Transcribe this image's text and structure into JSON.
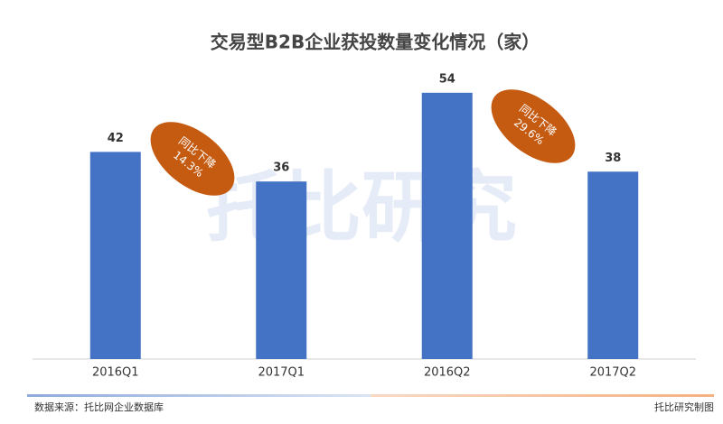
{
  "chart_data": {
    "type": "bar",
    "title": "交易型B2B企业获投数量变化情况（家）",
    "categories": [
      "2016Q1",
      "2017Q1",
      "2016Q2",
      "2017Q2"
    ],
    "values": [
      42,
      36,
      54,
      38
    ],
    "color": "#4472c4",
    "ylim": [
      0,
      60
    ],
    "annotations": [
      {
        "text": "同比下降",
        "value": 14.3,
        "value_label": "14.3%"
      },
      {
        "text": "同比下降",
        "value": 29.6,
        "value_label": "29.6%"
      }
    ],
    "annotation_color": "#c55a11",
    "watermark": "托比研究",
    "source": "数据来源：托比网企业数据库",
    "credit": "托比研究制图"
  }
}
